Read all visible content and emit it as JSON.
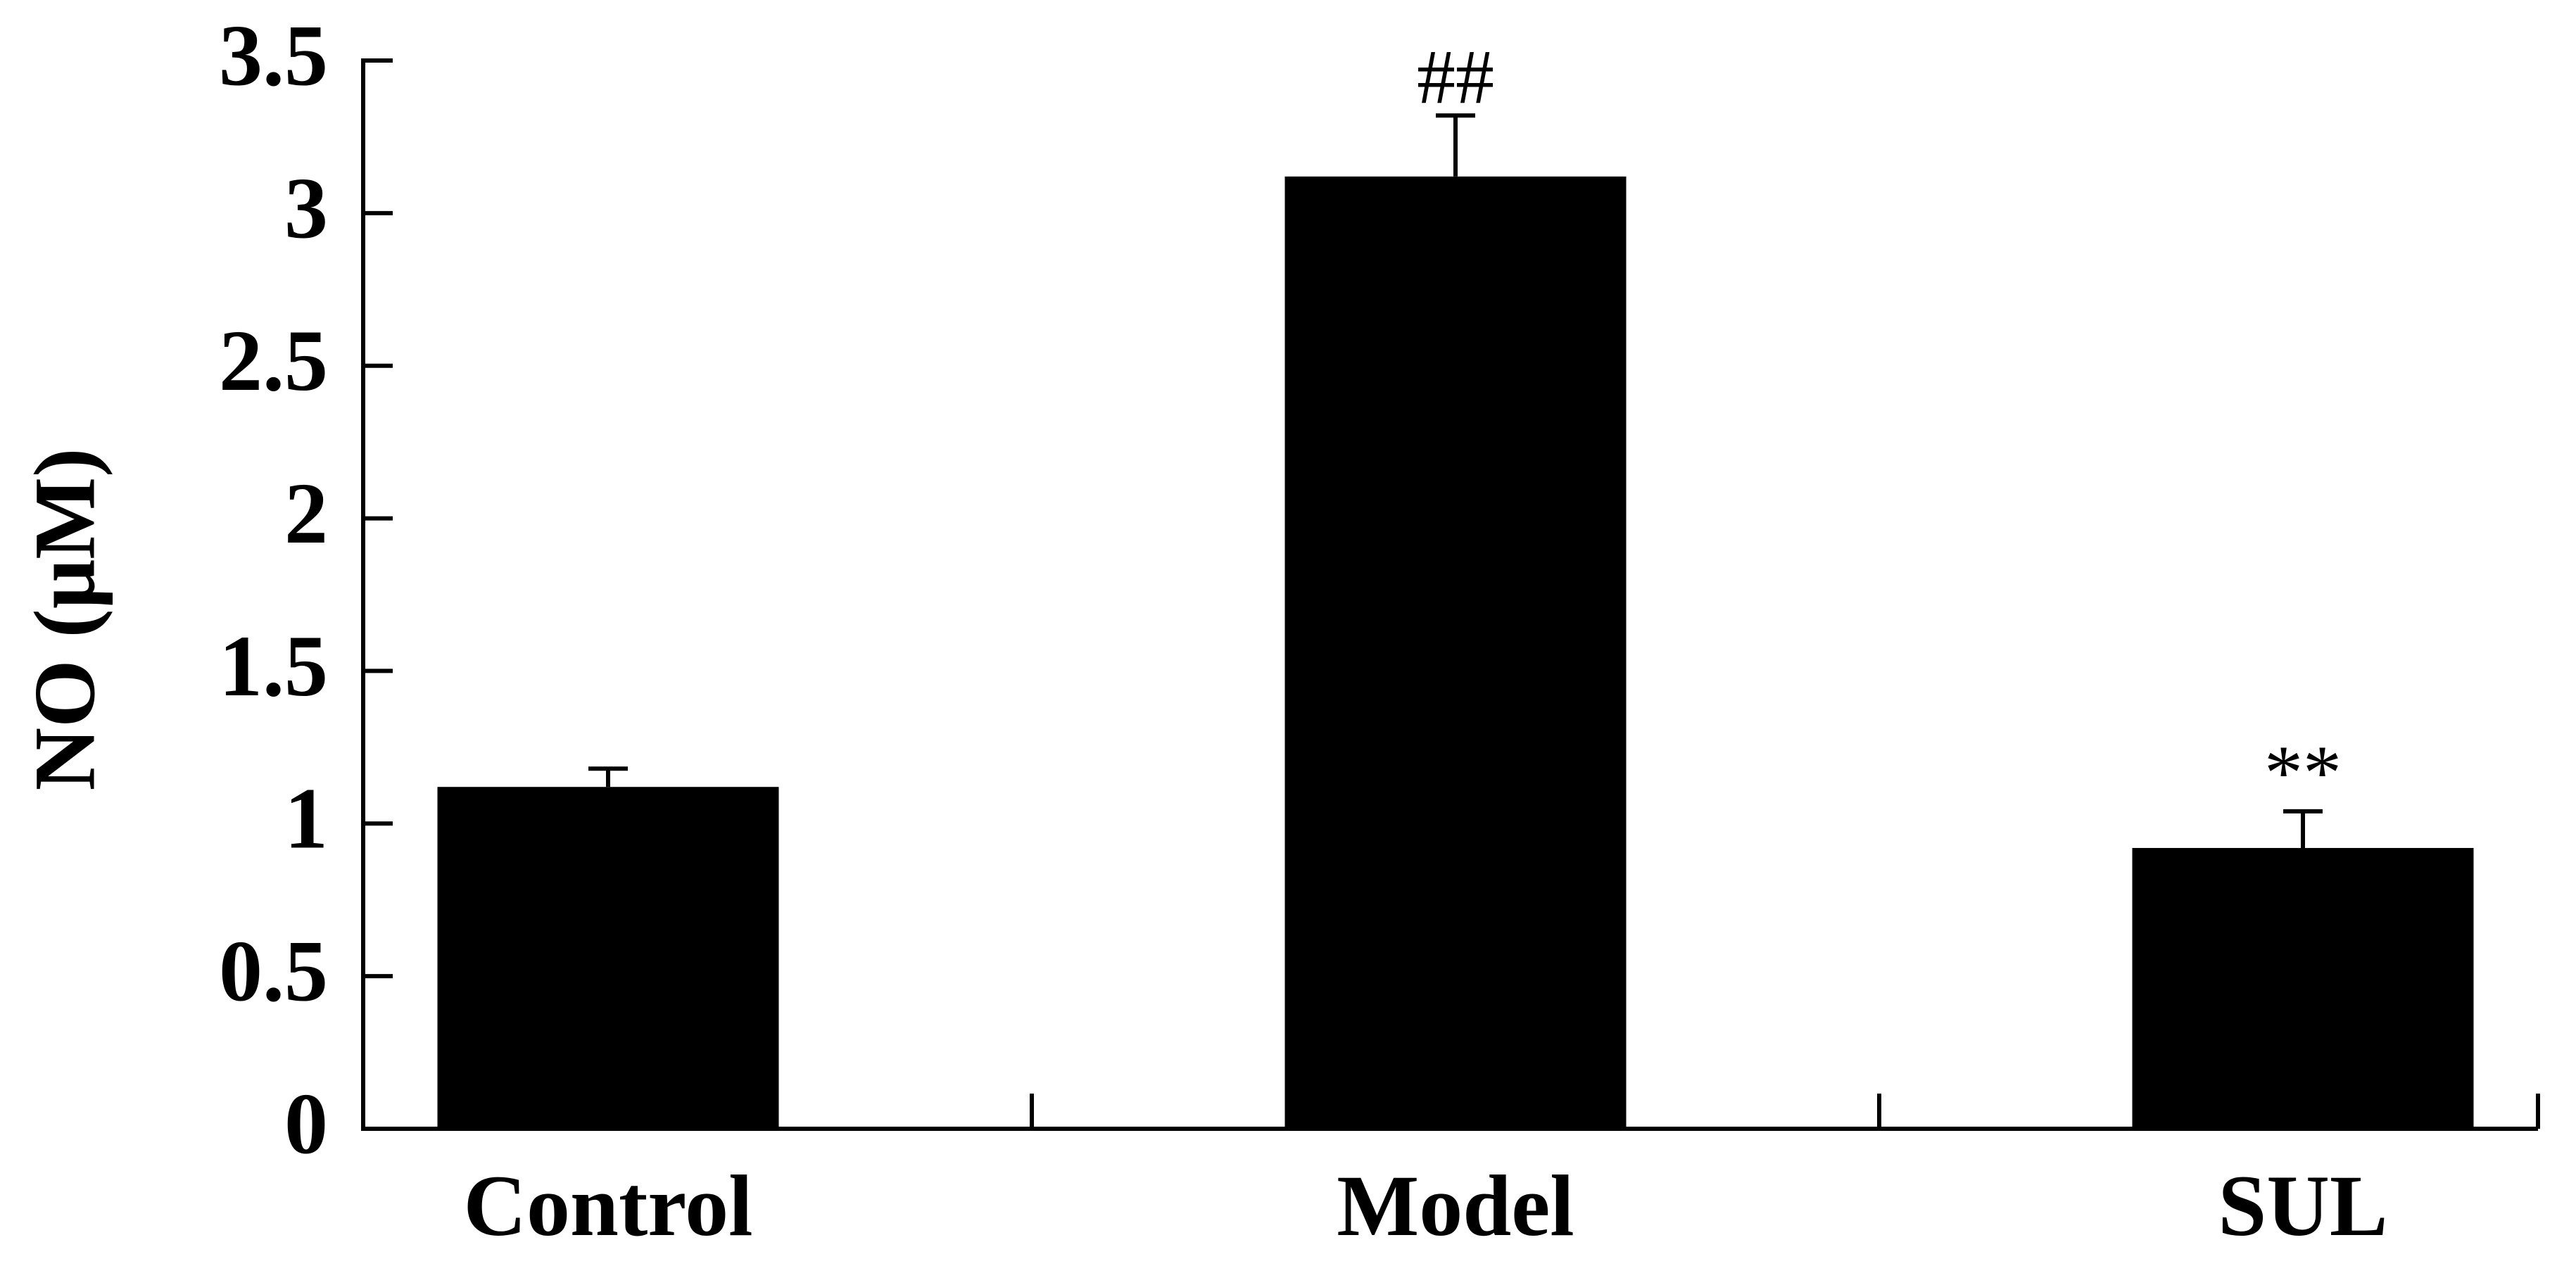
{
  "chart_data": {
    "type": "bar",
    "y_label": "NO (μM)",
    "categories": [
      "Control",
      "Model",
      "SUL"
    ],
    "values": [
      1.12,
      3.12,
      0.92
    ],
    "errors": [
      0.06,
      0.2,
      0.12
    ],
    "annotations": [
      null,
      "##",
      "**"
    ],
    "color": "#000000",
    "ylim": [
      0,
      3.5
    ],
    "yticks": [
      0,
      0.5,
      1,
      1.5,
      2,
      2.5,
      3,
      3.5
    ],
    "grid": false
  }
}
